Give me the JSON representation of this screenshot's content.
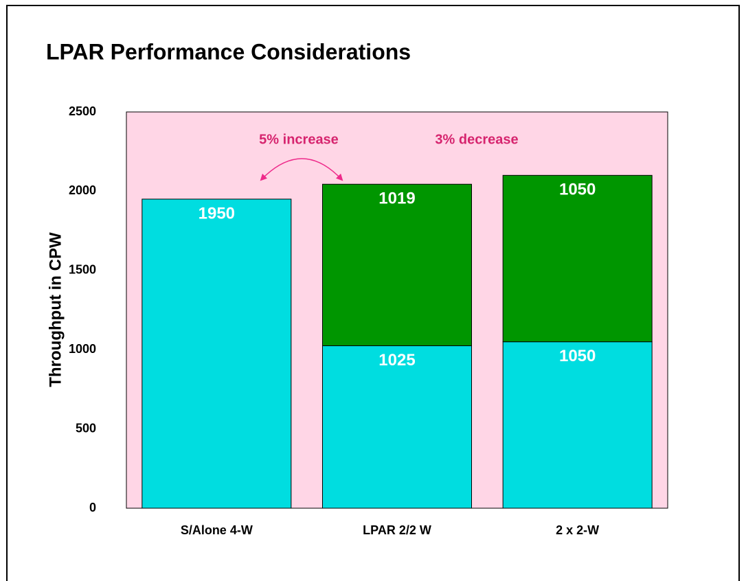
{
  "chart_data": {
    "type": "stacked_bar",
    "title": "LPAR Performance Considerations",
    "ylabel": "Throughput in CPW",
    "categories": [
      "S/Alone 4-W",
      "LPAR 2/2 W",
      "2 x 2-W"
    ],
    "series": [
      {
        "color": "#00dde0",
        "values": [
          1950,
          1025,
          1050
        ]
      },
      {
        "color": "#009600",
        "values": [
          null,
          1019,
          1050
        ]
      }
    ],
    "ylim": [
      0,
      2500
    ],
    "yticks": [
      0,
      500,
      1000,
      1500,
      2000,
      2500
    ],
    "plot_background": "#ffd6e6",
    "annotations": [
      "5% increase",
      "3% decrease"
    ],
    "annotation_color": "#d6246e"
  }
}
